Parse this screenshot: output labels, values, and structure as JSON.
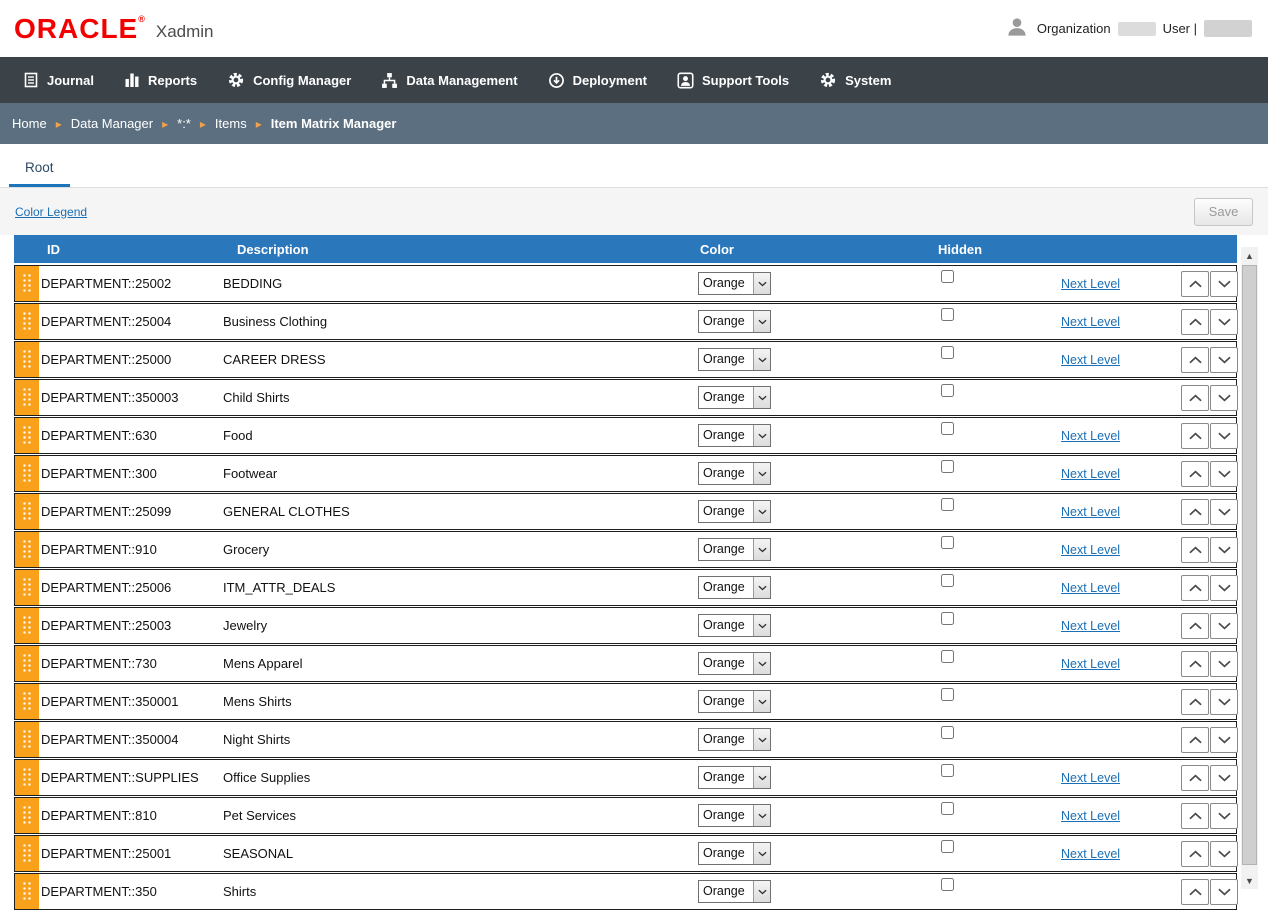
{
  "header": {
    "brand": "ORACLE",
    "brand_mark": "®",
    "app_name": "Xadmin",
    "organization_label": "Organization",
    "user_label": "User |"
  },
  "nav": {
    "items": [
      {
        "label": "Journal",
        "icon": "journal-icon"
      },
      {
        "label": "Reports",
        "icon": "reports-icon"
      },
      {
        "label": "Config Manager",
        "icon": "config-gear-icon"
      },
      {
        "label": "Data Management",
        "icon": "data-management-icon"
      },
      {
        "label": "Deployment",
        "icon": "deployment-icon"
      },
      {
        "label": "Support Tools",
        "icon": "support-tools-icon"
      },
      {
        "label": "System",
        "icon": "system-gear-icon"
      }
    ]
  },
  "breadcrumb": {
    "separator": "▸",
    "items": [
      "Home",
      "Data Manager",
      "*:*",
      "Items",
      "Item Matrix Manager"
    ]
  },
  "tabs": {
    "root_label": "Root"
  },
  "toolbar": {
    "color_legend_label": "Color Legend",
    "save_label": "Save"
  },
  "table": {
    "headers": {
      "id": "ID",
      "description": "Description",
      "color": "Color",
      "hidden": "Hidden"
    },
    "next_level_label": "Next Level",
    "rows": [
      {
        "id": "DEPARTMENT::25002",
        "description": "BEDDING",
        "color": "Orange",
        "hidden": false,
        "next_level": true
      },
      {
        "id": "DEPARTMENT::25004",
        "description": "Business Clothing",
        "color": "Orange",
        "hidden": false,
        "next_level": true
      },
      {
        "id": "DEPARTMENT::25000",
        "description": "CAREER DRESS",
        "color": "Orange",
        "hidden": false,
        "next_level": true
      },
      {
        "id": "DEPARTMENT::350003",
        "description": "Child Shirts",
        "color": "Orange",
        "hidden": false,
        "next_level": false
      },
      {
        "id": "DEPARTMENT::630",
        "description": "Food",
        "color": "Orange",
        "hidden": false,
        "next_level": true
      },
      {
        "id": "DEPARTMENT::300",
        "description": "Footwear",
        "color": "Orange",
        "hidden": false,
        "next_level": true
      },
      {
        "id": "DEPARTMENT::25099",
        "description": "GENERAL CLOTHES",
        "color": "Orange",
        "hidden": false,
        "next_level": true
      },
      {
        "id": "DEPARTMENT::910",
        "description": "Grocery",
        "color": "Orange",
        "hidden": false,
        "next_level": true
      },
      {
        "id": "DEPARTMENT::25006",
        "description": "ITM_ATTR_DEALS",
        "color": "Orange",
        "hidden": false,
        "next_level": true
      },
      {
        "id": "DEPARTMENT::25003",
        "description": "Jewelry",
        "color": "Orange",
        "hidden": false,
        "next_level": true
      },
      {
        "id": "DEPARTMENT::730",
        "description": "Mens Apparel",
        "color": "Orange",
        "hidden": false,
        "next_level": true
      },
      {
        "id": "DEPARTMENT::350001",
        "description": "Mens Shirts",
        "color": "Orange",
        "hidden": false,
        "next_level": false
      },
      {
        "id": "DEPARTMENT::350004",
        "description": "Night Shirts",
        "color": "Orange",
        "hidden": false,
        "next_level": false
      },
      {
        "id": "DEPARTMENT::SUPPLIES",
        "description": "Office Supplies",
        "color": "Orange",
        "hidden": false,
        "next_level": true
      },
      {
        "id": "DEPARTMENT::810",
        "description": "Pet Services",
        "color": "Orange",
        "hidden": false,
        "next_level": true
      },
      {
        "id": "DEPARTMENT::25001",
        "description": "SEASONAL",
        "color": "Orange",
        "hidden": false,
        "next_level": true
      },
      {
        "id": "DEPARTMENT::350",
        "description": "Shirts",
        "color": "Orange",
        "hidden": false,
        "next_level": false
      }
    ]
  },
  "colors": {
    "oracle_red": "#F30000",
    "nav_dark": "#3B4248",
    "breadcrumb_gray": "#5C6F80",
    "table_header_blue": "#2B77BC",
    "accent_orange": "#F9A11B",
    "link_blue": "#1B6FB5"
  }
}
